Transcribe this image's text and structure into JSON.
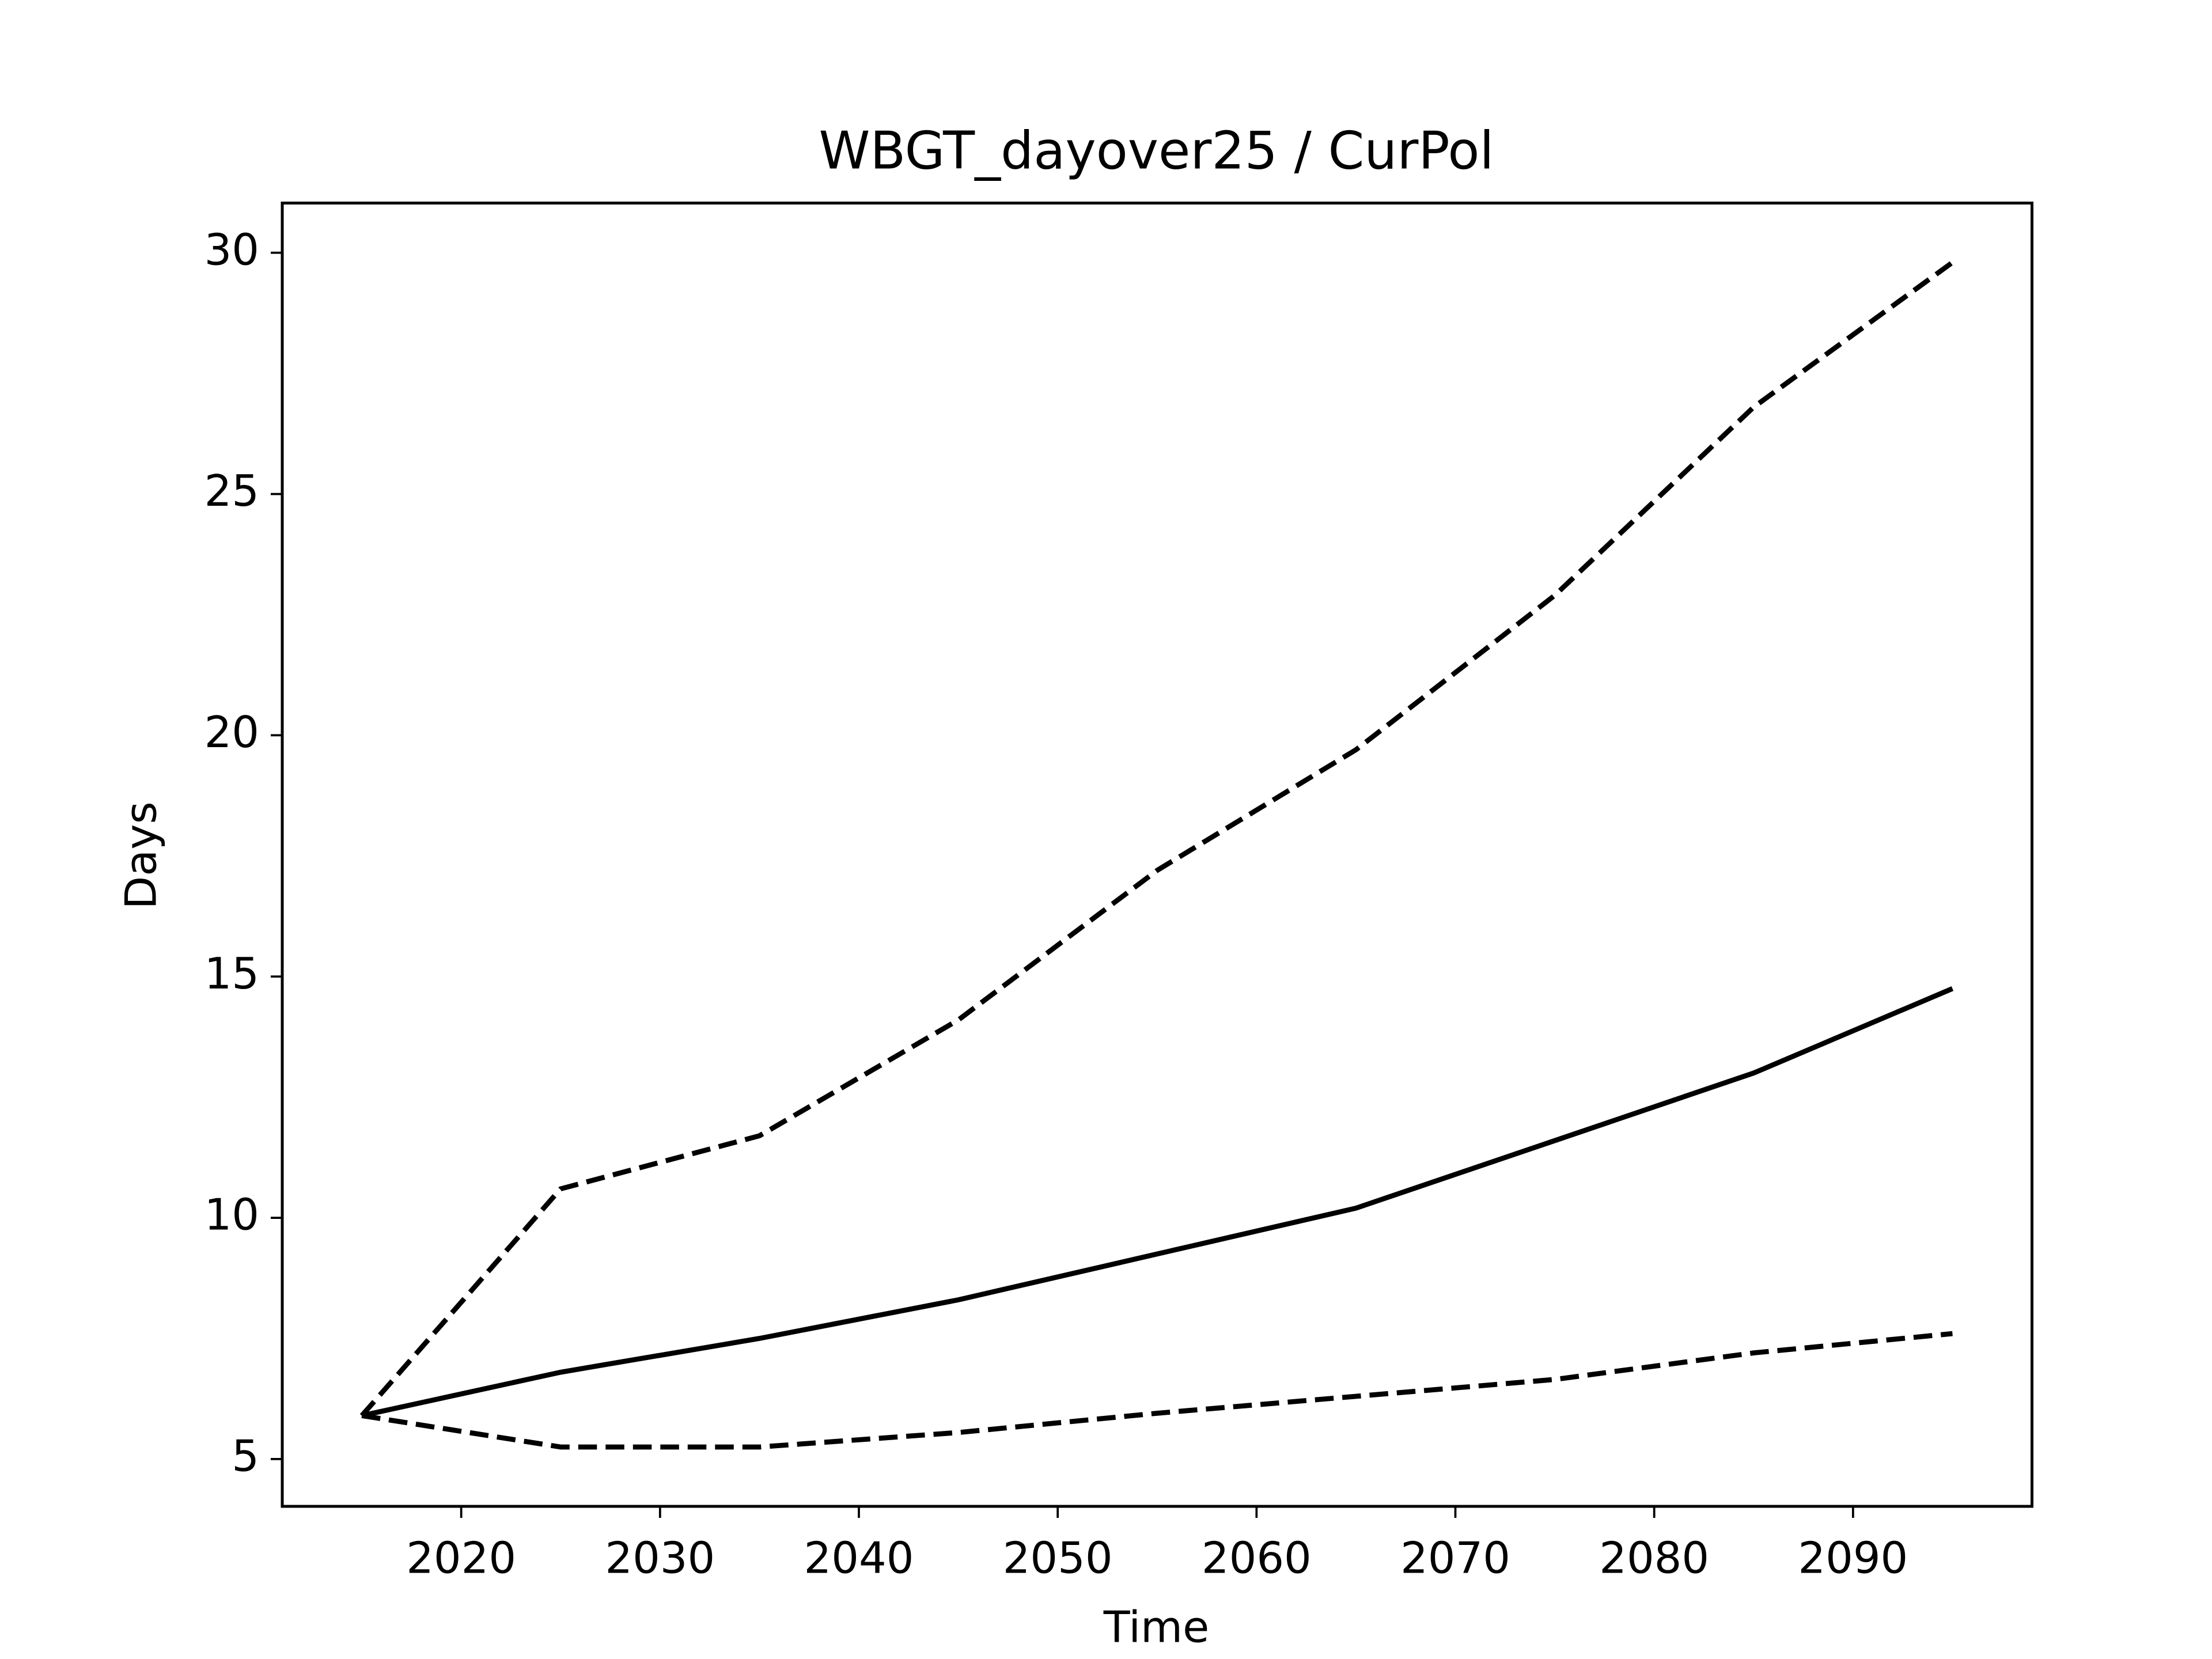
{
  "chart_data": {
    "type": "line",
    "title": "WBGT_dayover25 / CurPol",
    "x_label": "Time",
    "y_label": "Days",
    "x": [
      2015,
      2025,
      2035,
      2045,
      2055,
      2065,
      2075,
      2085,
      2095
    ],
    "series": [
      {
        "color": "#000000",
        "dash": "solid",
        "values": [
          5.9,
          6.8,
          7.5,
          8.3,
          9.25,
          10.2,
          11.6,
          13.0,
          14.75
        ]
      },
      {
        "color": "#000000",
        "dash": "dashed",
        "values": [
          5.9,
          10.6,
          11.7,
          14.1,
          17.2,
          19.7,
          22.9,
          26.8,
          29.8
        ]
      },
      {
        "color": "#000000",
        "dash": "dashed",
        "values": [
          5.9,
          5.25,
          5.25,
          5.55,
          5.95,
          6.3,
          6.65,
          7.2,
          7.6
        ]
      }
    ],
    "xlim": [
      2011,
      2099
    ],
    "xticks": [
      2020,
      2030,
      2040,
      2050,
      2060,
      2070,
      2080,
      2090
    ],
    "ylim": [
      4.02,
      31.03
    ],
    "yticks": [
      5,
      10,
      15,
      20,
      25,
      30
    ],
    "grid": false
  }
}
